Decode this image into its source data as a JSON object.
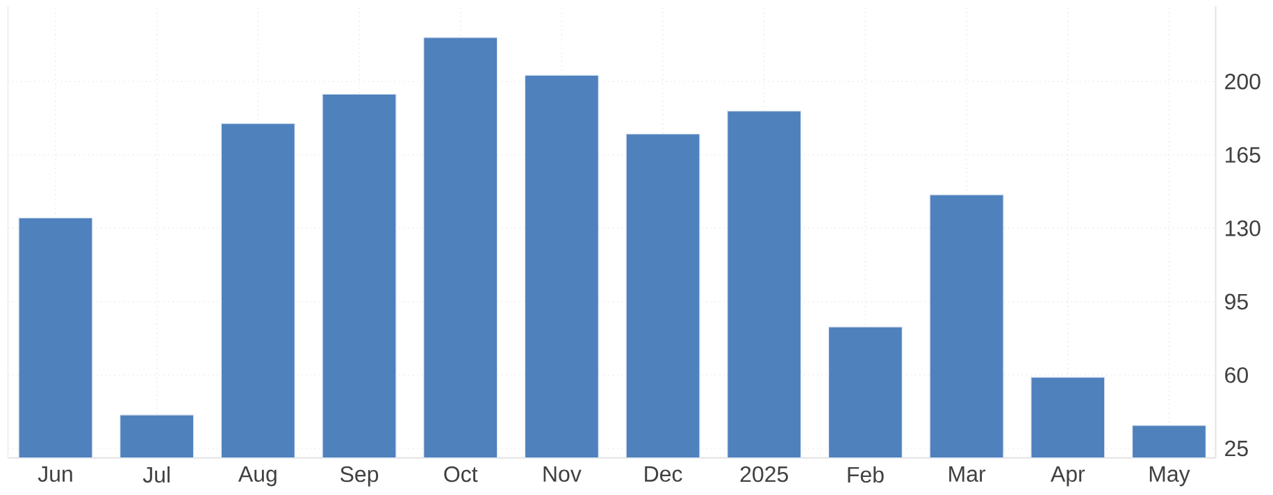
{
  "chart_data": {
    "type": "bar",
    "categories": [
      "Jun",
      "Jul",
      "Aug",
      "Sep",
      "Oct",
      "Nov",
      "Dec",
      "2025",
      "Feb",
      "Mar",
      "Apr",
      "May"
    ],
    "values": [
      135,
      41,
      180,
      194,
      221,
      203,
      175,
      186,
      83,
      146,
      59,
      36
    ],
    "color": "#4f81bd",
    "ylim": [
      20.5,
      236
    ],
    "yticks": [
      25,
      60,
      95,
      130,
      165,
      200
    ],
    "grid": true
  }
}
